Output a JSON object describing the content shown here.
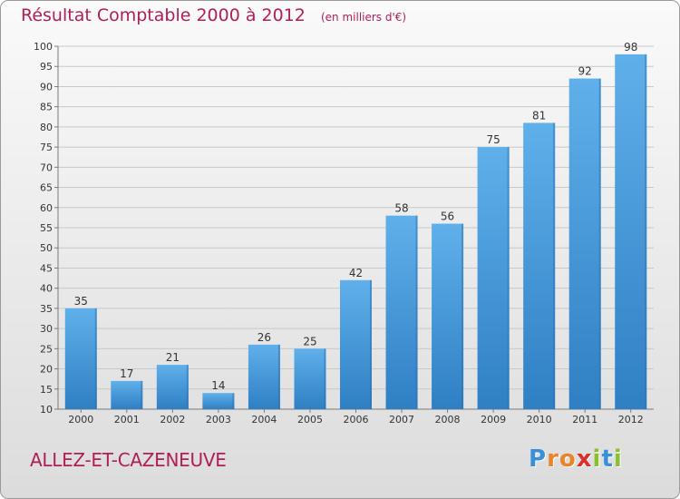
{
  "chart_data": {
    "type": "bar",
    "title": "Résultat Comptable 2000 à 2012",
    "subtitle": "(en milliers d'€)",
    "categories": [
      "2000",
      "2001",
      "2002",
      "2003",
      "2004",
      "2005",
      "2006",
      "2007",
      "2008",
      "2009",
      "2010",
      "2011",
      "2012"
    ],
    "values": [
      35,
      17,
      21,
      14,
      26,
      25,
      42,
      58,
      56,
      75,
      81,
      92,
      98
    ],
    "ylim": [
      10,
      100
    ],
    "yticks": [
      10,
      15,
      20,
      25,
      30,
      35,
      40,
      45,
      50,
      55,
      60,
      65,
      70,
      75,
      80,
      85,
      90,
      95,
      100
    ],
    "grid": true,
    "legend": "none",
    "bar_color": "#4e9fdc",
    "title_color": "#b01e58"
  },
  "footer": {
    "commune": "ALLEZ-ET-CAZENEUVE"
  },
  "brand": {
    "letters": [
      "P",
      "r",
      "o",
      "x",
      "i",
      "t",
      "i"
    ],
    "colors": [
      "#3a8fd9",
      "#e8842a",
      "#e8842a",
      "#d9302c",
      "#8bbf2f",
      "#3a8fd9",
      "#8bbf2f"
    ]
  }
}
